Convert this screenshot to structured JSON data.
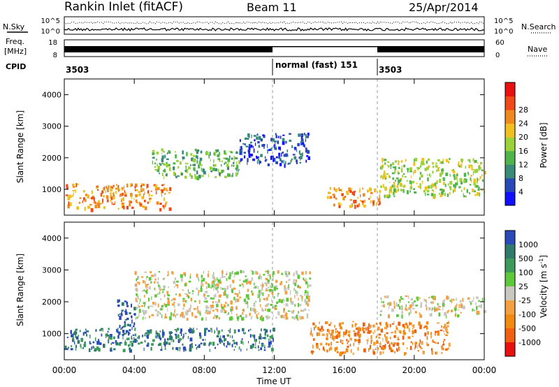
{
  "header": {
    "station": "Rankin Inlet (fitACF)",
    "beam": "Beam 11",
    "date": "25/Apr/2014"
  },
  "top_panel": {
    "left_label_top": "N.Sky",
    "left_label_freq_1": "Freq.",
    "left_label_freq_2": "[MHz]",
    "left_label_cpid": "CPID",
    "right_label_top": "N.Search",
    "right_label_nave": "Nave",
    "noise_ticks": [
      "10^5",
      "10^0"
    ],
    "freq_ticks": [
      "18",
      "8"
    ],
    "nave_ticks": [
      "60",
      "0"
    ],
    "cpid_segments": [
      {
        "start_h": 0,
        "end_h": 12,
        "label": "3503"
      },
      {
        "start_h": 12,
        "end_h": 18,
        "label": "normal (fast) 151"
      },
      {
        "start_h": 18,
        "end_h": 24,
        "label": "3503"
      }
    ]
  },
  "chart_data": [
    {
      "type": "heatmap",
      "quantity": "power",
      "xlabel": "Time UT",
      "ylabel": "Slant Range [km]",
      "xlim": [
        0,
        24
      ],
      "ylim": [
        180,
        4500
      ],
      "x_ticks": [
        "00:00",
        "04:00",
        "08:00",
        "12:00",
        "16:00",
        "20:00",
        "00:00"
      ],
      "y_ticks": [
        1000,
        2000,
        3000,
        4000
      ],
      "colorbar": {
        "label": "Power [dB]",
        "ticks": [
          "4",
          "8",
          "12",
          "16",
          "20",
          "24",
          "28"
        ],
        "colors": [
          "#1010ff",
          "#2a49b8",
          "#3a8a78",
          "#4fb44a",
          "#9bd23a",
          "#f0c020",
          "#f08a20",
          "#f04818",
          "#e81010"
        ]
      },
      "features": [
        {
          "t_start": 0.0,
          "t_end": 6.0,
          "r_start": 400,
          "r_end": 1200,
          "level": "28"
        },
        {
          "t_start": 5.0,
          "t_end": 10.0,
          "r_start": 1400,
          "r_end": 2300,
          "level": "16"
        },
        {
          "t_start": 10.0,
          "t_end": 14.0,
          "r_start": 1800,
          "r_end": 2800,
          "level": "8"
        },
        {
          "t_start": 15.0,
          "t_end": 18.0,
          "r_start": 500,
          "r_end": 1100,
          "level": "28"
        },
        {
          "t_start": 18.0,
          "t_end": 24.0,
          "r_start": 800,
          "r_end": 2000,
          "level": "20"
        }
      ]
    },
    {
      "type": "heatmap",
      "quantity": "velocity",
      "xlabel": "Time UT",
      "ylabel": "Slant Range [km]",
      "xlim": [
        0,
        24
      ],
      "ylim": [
        180,
        4500
      ],
      "x_ticks": [
        "00:00",
        "04:00",
        "08:00",
        "12:00",
        "16:00",
        "20:00",
        "00:00"
      ],
      "y_ticks": [
        1000,
        2000,
        3000,
        4000
      ],
      "colorbar": {
        "label": "Velocity [m s",
        "label_sup": "-1",
        "label_end": "]",
        "ticks": [
          "1000",
          "500",
          "100",
          "25",
          "-25",
          "-100",
          "-500",
          "-1000"
        ],
        "colors": [
          "#2a4ab8",
          "#2f7a6a",
          "#3e9a5a",
          "#5cc83a",
          "#c8c8c0",
          "#f4a040",
          "#f08a10",
          "#f06010",
          "#e81010"
        ]
      },
      "features": [
        {
          "t_start": 0.0,
          "t_end": 12.0,
          "r_start": 500,
          "r_end": 1200,
          "level": "500"
        },
        {
          "t_start": 3.0,
          "t_end": 4.0,
          "r_start": 900,
          "r_end": 2100,
          "level": "1000"
        },
        {
          "t_start": 4.0,
          "t_end": 14.0,
          "r_start": 1500,
          "r_end": 3000,
          "level": "-25"
        },
        {
          "t_start": 14.0,
          "t_end": 22.0,
          "r_start": 400,
          "r_end": 1400,
          "level": "-500"
        },
        {
          "t_start": 18.0,
          "t_end": 24.0,
          "r_start": 1600,
          "r_end": 2200,
          "level": "-25"
        }
      ]
    }
  ]
}
